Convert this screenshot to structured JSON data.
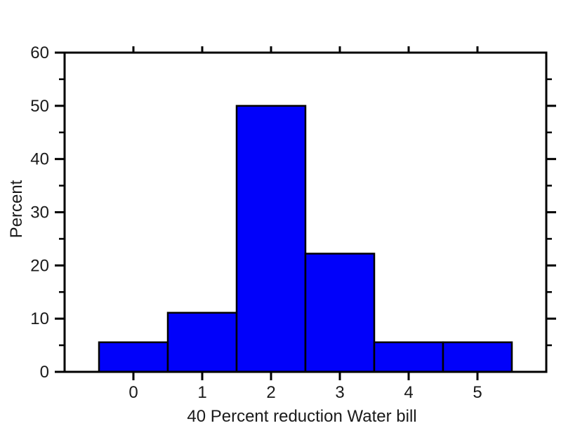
{
  "chart_data": {
    "type": "bar",
    "subtype": "histogram",
    "title": "",
    "xlabel": "40 Percent reduction Water bill",
    "ylabel": "Percent",
    "categories": [
      0,
      1,
      2,
      3,
      4,
      5
    ],
    "values": [
      5.56,
      11.11,
      50,
      22.22,
      5.56,
      5.56
    ],
    "bin_width": 1,
    "xlim": [
      -1,
      6
    ],
    "ylim": [
      0,
      60
    ],
    "xtick_labels": [
      "0",
      "1",
      "2",
      "3",
      "4",
      "5"
    ],
    "ytick_labels": [
      "0",
      "10",
      "20",
      "30",
      "40",
      "50",
      "60"
    ],
    "ytick_major_step": 10,
    "ytick_minor_step": 5,
    "grid": false,
    "legend": "none",
    "colors": {
      "bar_fill": "#0101fa",
      "bar_edge": "#000000",
      "axis": "#000000",
      "text": "#1a1a1a",
      "background": "#ffffff"
    }
  }
}
